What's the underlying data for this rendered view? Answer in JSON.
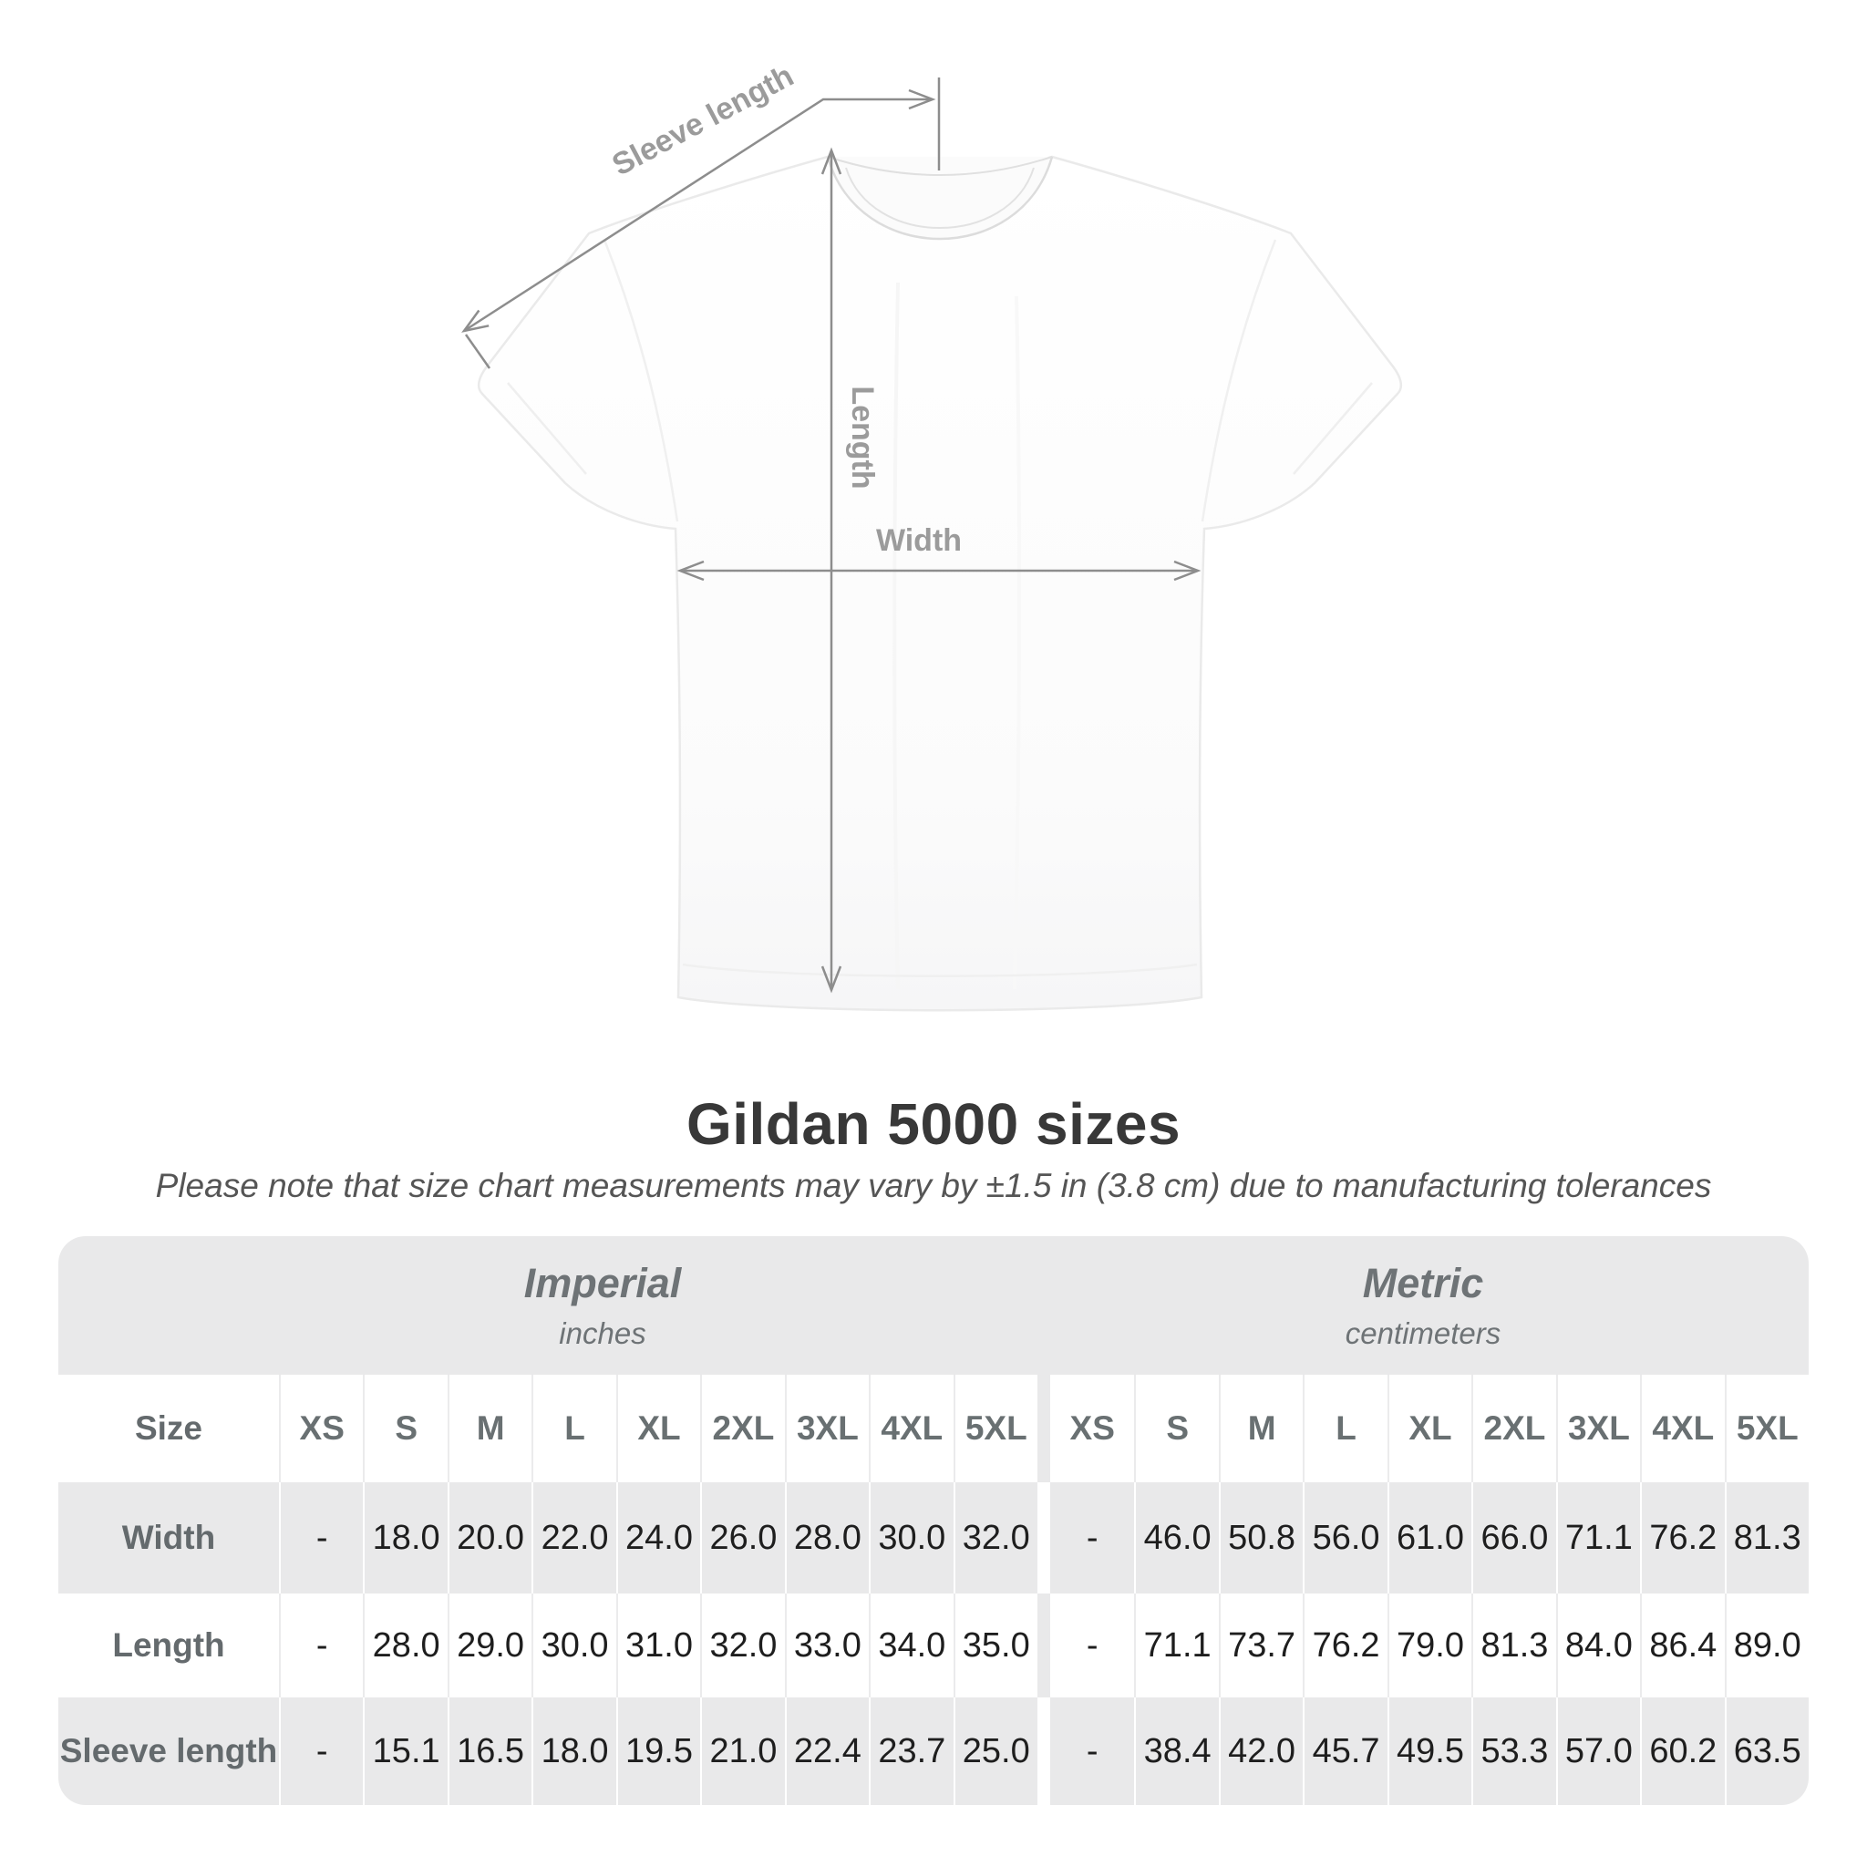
{
  "title": "Gildan 5000 sizes",
  "subtitle": "Please note that size chart measurements may vary by ±1.5 in (3.8 cm) due to manufacturing tolerances",
  "diagram": {
    "labels": {
      "sleeve_length": "Sleeve length",
      "length": "Length",
      "width": "Width"
    }
  },
  "table": {
    "unit_groups": [
      {
        "label": "Imperial",
        "sublabel": "inches"
      },
      {
        "label": "Metric",
        "sublabel": "centimeters"
      }
    ],
    "size_header_label": "Size",
    "sizes": [
      "XS",
      "S",
      "M",
      "L",
      "XL",
      "2XL",
      "3XL",
      "4XL",
      "5XL"
    ],
    "rows": [
      {
        "label": "Width",
        "imperial": [
          "-",
          "18.0",
          "20.0",
          "22.0",
          "24.0",
          "26.0",
          "28.0",
          "30.0",
          "32.0"
        ],
        "metric": [
          "-",
          "46.0",
          "50.8",
          "56.0",
          "61.0",
          "66.0",
          "71.1",
          "76.2",
          "81.3"
        ]
      },
      {
        "label": "Length",
        "imperial": [
          "-",
          "28.0",
          "29.0",
          "30.0",
          "31.0",
          "32.0",
          "33.0",
          "34.0",
          "35.0"
        ],
        "metric": [
          "-",
          "71.1",
          "73.7",
          "76.2",
          "79.0",
          "81.3",
          "84.0",
          "86.4",
          "89.0"
        ]
      },
      {
        "label": "Sleeve length",
        "imperial": [
          "-",
          "15.1",
          "16.5",
          "18.0",
          "19.5",
          "21.0",
          "22.4",
          "23.7",
          "25.0"
        ],
        "metric": [
          "-",
          "38.4",
          "42.0",
          "45.7",
          "49.5",
          "53.3",
          "57.0",
          "60.2",
          "63.5"
        ]
      }
    ]
  },
  "chart_data": {
    "type": "table",
    "title": "Gildan 5000 sizes",
    "note": "Please note that size chart measurements may vary by ±1.5 in (3.8 cm) due to manufacturing tolerances",
    "unit_groups": [
      "Imperial (inches)",
      "Metric (centimeters)"
    ],
    "columns": [
      "Size",
      "XS",
      "S",
      "M",
      "L",
      "XL",
      "2XL",
      "3XL",
      "4XL",
      "5XL"
    ],
    "imperial_rows": [
      [
        "Width",
        null,
        18.0,
        20.0,
        22.0,
        24.0,
        26.0,
        28.0,
        30.0,
        32.0
      ],
      [
        "Length",
        null,
        28.0,
        29.0,
        30.0,
        31.0,
        32.0,
        33.0,
        34.0,
        35.0
      ],
      [
        "Sleeve length",
        null,
        15.1,
        16.5,
        18.0,
        19.5,
        21.0,
        22.4,
        23.7,
        25.0
      ]
    ],
    "metric_rows": [
      [
        "Width",
        null,
        46.0,
        50.8,
        56.0,
        61.0,
        66.0,
        71.1,
        76.2,
        81.3
      ],
      [
        "Length",
        null,
        71.1,
        73.7,
        76.2,
        79.0,
        81.3,
        84.0,
        86.4,
        89.0
      ],
      [
        "Sleeve length",
        null,
        38.4,
        42.0,
        45.7,
        49.5,
        53.3,
        57.0,
        60.2,
        63.5
      ]
    ]
  },
  "colors": {
    "table_band": "#e9e9ea",
    "dimension_line": "#8d8d8d",
    "dimension_text": "#9b9b9b",
    "title_text": "#383838",
    "subtitle_text": "#555555",
    "row_label_text": "#646a6d",
    "value_text": "#1e1e1e"
  }
}
